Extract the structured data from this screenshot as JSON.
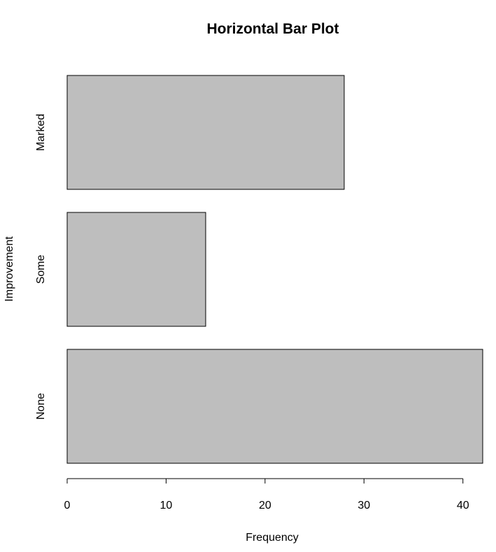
{
  "chart_data": {
    "type": "bar",
    "orientation": "horizontal",
    "title": "Horizontal Bar Plot",
    "xlabel": "Frequency",
    "ylabel": "Improvement",
    "categories": [
      "None",
      "Some",
      "Marked"
    ],
    "values": [
      42,
      14,
      28
    ],
    "xlim": [
      0,
      42
    ],
    "x_ticks": [
      0,
      10,
      20,
      30,
      40
    ],
    "grid": false,
    "legend": "none",
    "bar_color": "#bebebe",
    "bar_border_color": "#000000"
  }
}
